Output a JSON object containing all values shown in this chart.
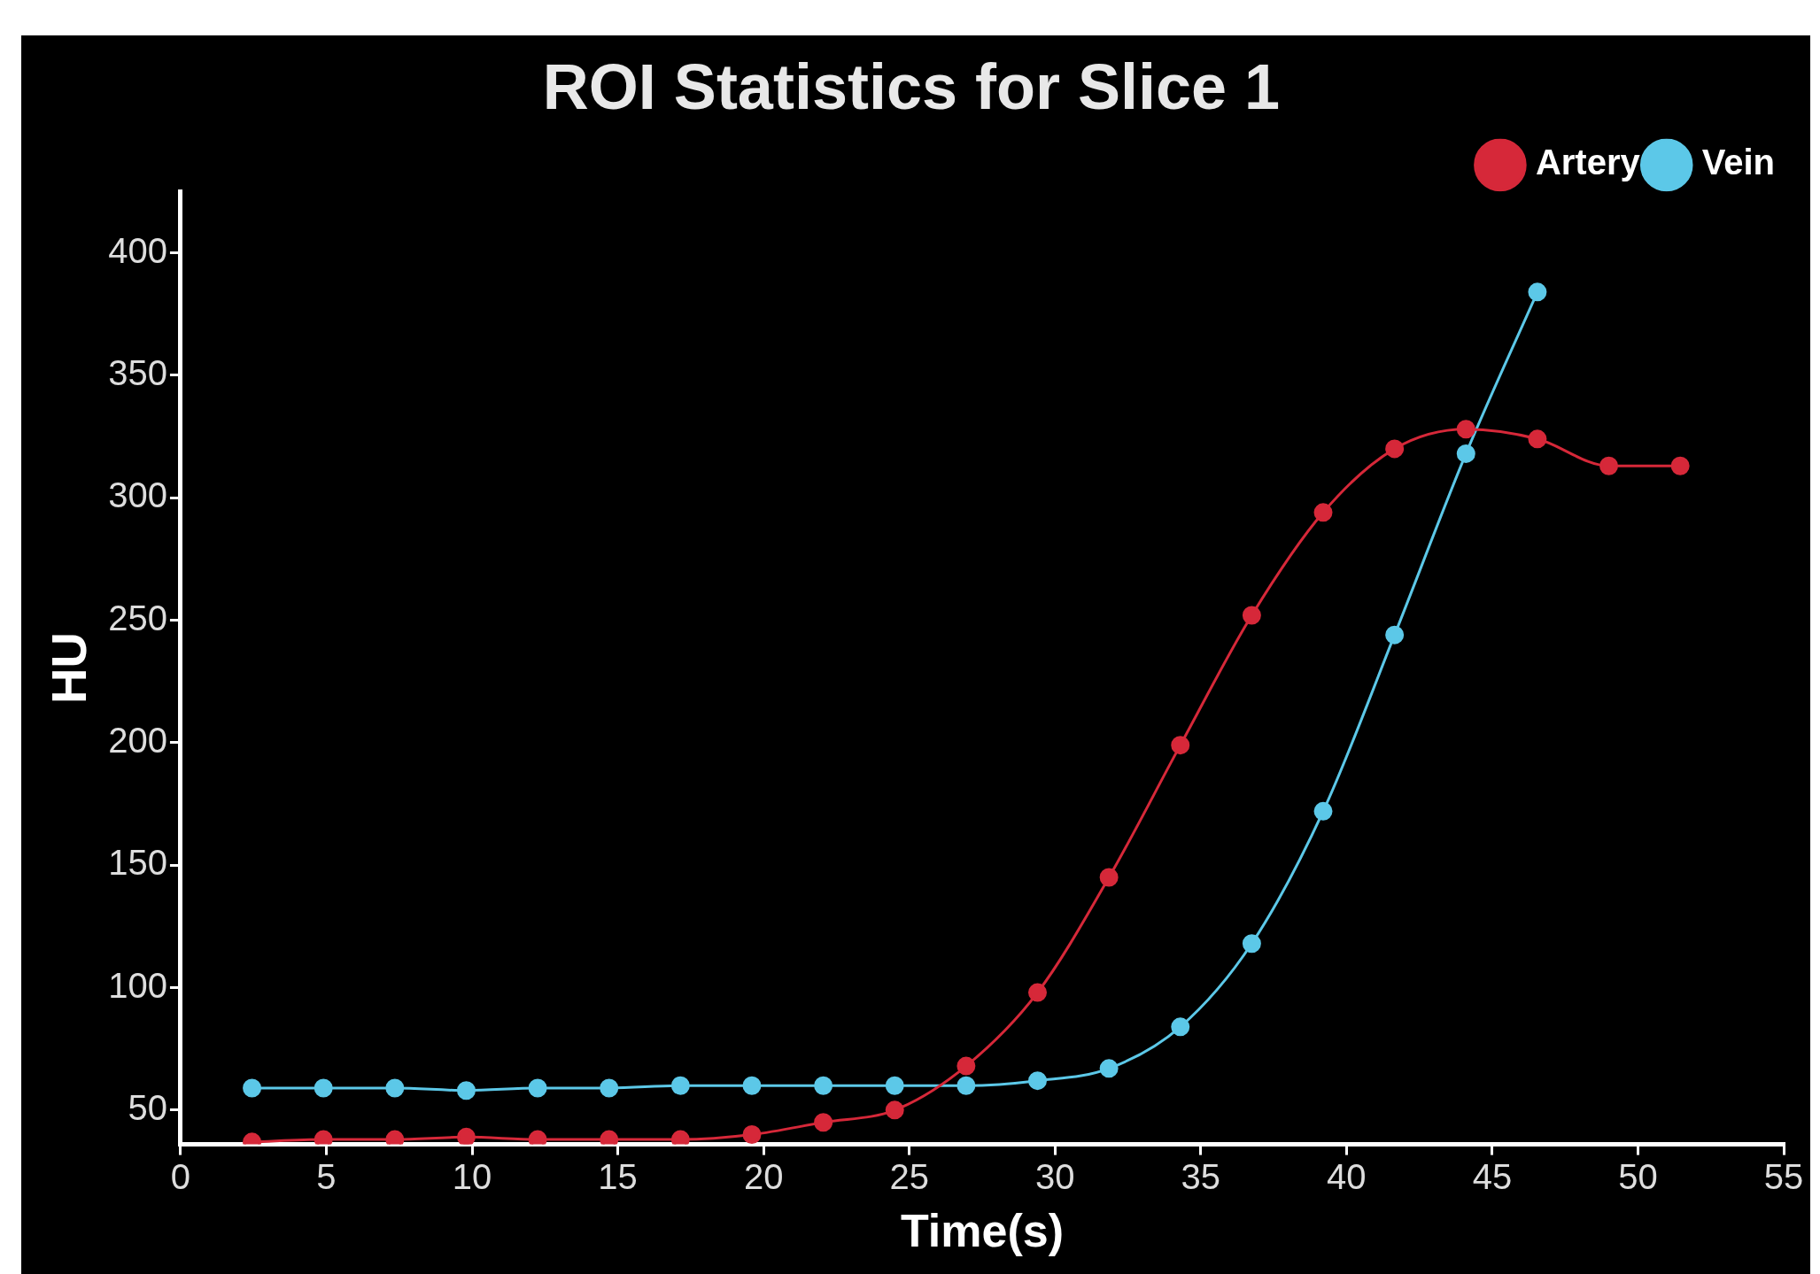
{
  "chart_data": {
    "type": "line",
    "title": "ROI Statistics for Slice 1",
    "xlabel": "Time(s)",
    "ylabel": "HU",
    "xlim": [
      0,
      55
    ],
    "xticks": [
      0,
      5,
      10,
      15,
      20,
      25,
      30,
      35,
      40,
      45,
      50,
      55
    ],
    "ylim": [
      36,
      425
    ],
    "yticks": [
      50,
      100,
      150,
      200,
      250,
      300,
      350,
      400
    ],
    "grid": false,
    "legend": "top right",
    "marker": "circle",
    "line_style": "solid",
    "series": [
      {
        "name": "Artery",
        "color": "#d62839",
        "x": [
          2.45,
          4.9,
          7.35,
          9.8,
          12.25,
          14.7,
          17.15,
          19.6,
          22.05,
          24.5,
          26.95,
          29.4,
          31.85,
          34.3,
          36.75,
          39.2,
          41.65,
          44.1,
          46.55,
          49,
          51.45
        ],
        "values": [
          37,
          38,
          38,
          39,
          38,
          38,
          38,
          40,
          45,
          50,
          68,
          98,
          145,
          199,
          252,
          294,
          320,
          328,
          324,
          313,
          313
        ]
      },
      {
        "name": "Vein",
        "color": "#5cc8e8",
        "x": [
          2.45,
          4.9,
          7.35,
          9.8,
          12.25,
          14.7,
          17.15,
          19.6,
          22.05,
          24.5,
          26.95,
          29.4,
          31.85,
          34.3,
          36.75,
          39.2,
          41.65,
          44.1,
          46.55
        ],
        "values": [
          59,
          59,
          59,
          58,
          59,
          59,
          60,
          60,
          60,
          60,
          60,
          62,
          67,
          84,
          118,
          172,
          244,
          318,
          384
        ]
      }
    ]
  }
}
